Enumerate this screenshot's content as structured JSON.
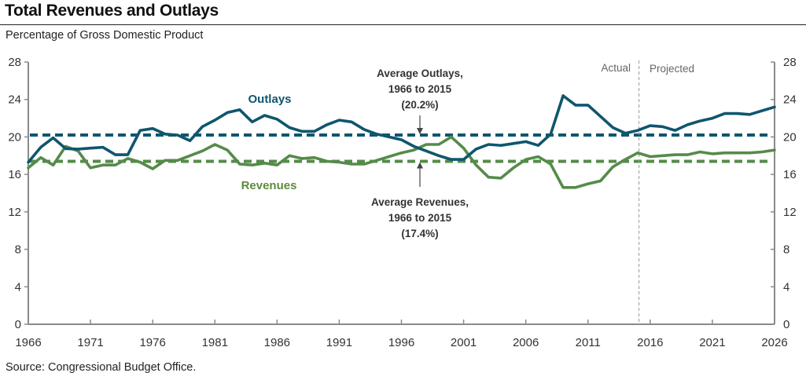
{
  "header": {
    "title": "Total Revenues and Outlays",
    "subtitle": "Percentage of Gross Domestic Product"
  },
  "footer": {
    "source": "Source: Congressional Budget Office."
  },
  "colors": {
    "outlays": "#0f566e",
    "revenues": "#558b4a",
    "revenues_label": "#5e8c3c",
    "axis": "#8a8a8a",
    "text": "#333333"
  },
  "chart_data": {
    "type": "line",
    "title": "Total Revenues and Outlays",
    "subtitle": "Percentage of Gross Domestic Product",
    "xlabel": "",
    "ylabel": "Percentage of Gross Domestic Product",
    "xlim": [
      1966,
      2026
    ],
    "ylim": [
      0,
      28
    ],
    "x_ticks": [
      "1966",
      "1971",
      "1976",
      "1981",
      "1986",
      "1991",
      "1996",
      "2001",
      "2006",
      "2011",
      "2016",
      "2021",
      "2026"
    ],
    "y_ticks": [
      "0",
      "4",
      "8",
      "12",
      "16",
      "20",
      "24",
      "28"
    ],
    "grid": false,
    "legend": "inline labels",
    "x": [
      1966,
      1967,
      1968,
      1969,
      1970,
      1971,
      1972,
      1973,
      1974,
      1975,
      1976,
      1977,
      1978,
      1979,
      1980,
      1981,
      1982,
      1983,
      1984,
      1985,
      1986,
      1987,
      1988,
      1989,
      1990,
      1991,
      1992,
      1993,
      1994,
      1995,
      1996,
      1997,
      1998,
      1999,
      2000,
      2001,
      2002,
      2003,
      2004,
      2005,
      2006,
      2007,
      2008,
      2009,
      2010,
      2011,
      2012,
      2013,
      2014,
      2015,
      2016,
      2017,
      2018,
      2019,
      2020,
      2021,
      2022,
      2023,
      2024,
      2025,
      2026
    ],
    "series": [
      {
        "name": "Outlays",
        "label": "Outlays",
        "values": [
          17.3,
          18.9,
          19.9,
          18.75,
          18.7,
          18.8,
          18.9,
          18.1,
          18.1,
          20.7,
          20.9,
          20.3,
          20.2,
          19.6,
          21.1,
          21.8,
          22.6,
          22.9,
          21.6,
          22.3,
          21.9,
          21.0,
          20.6,
          20.6,
          21.3,
          21.8,
          21.6,
          20.8,
          20.3,
          20.0,
          19.7,
          19.0,
          18.5,
          18.0,
          17.6,
          17.6,
          18.7,
          19.2,
          19.1,
          19.3,
          19.5,
          19.1,
          20.3,
          24.4,
          23.4,
          23.4,
          22.2,
          21.0,
          20.4,
          20.7,
          21.2,
          21.1,
          20.7,
          21.3,
          21.7,
          22.0,
          22.5,
          22.5,
          22.4,
          22.8,
          23.2
        ]
      },
      {
        "name": "Revenues",
        "label": "Revenues",
        "values": [
          16.7,
          17.8,
          17.0,
          19.0,
          18.5,
          16.7,
          17.0,
          17.0,
          17.7,
          17.3,
          16.6,
          17.5,
          17.5,
          18.0,
          18.5,
          19.2,
          18.6,
          17.1,
          17.0,
          17.2,
          17.0,
          18.0,
          17.7,
          17.8,
          17.4,
          17.3,
          17.1,
          17.1,
          17.5,
          17.9,
          18.3,
          18.6,
          19.2,
          19.2,
          20.0,
          18.8,
          17.0,
          15.7,
          15.6,
          16.7,
          17.6,
          17.9,
          17.1,
          14.6,
          14.6,
          15.0,
          15.3,
          16.8,
          17.6,
          18.3,
          17.9,
          18.0,
          18.1,
          18.1,
          18.4,
          18.2,
          18.3,
          18.3,
          18.3,
          18.4,
          18.6
        ]
      }
    ],
    "reference_lines": [
      {
        "name": "Average Outlays",
        "value": 20.2,
        "label_lines": [
          "Average Outlays,",
          "1966 to 2015",
          "(20.2%)"
        ]
      },
      {
        "name": "Average Revenues",
        "value": 17.4,
        "label_lines": [
          "Average Revenues,",
          "1966 to 2015",
          "(17.4%)"
        ]
      }
    ],
    "divider": {
      "x": 2015.1,
      "left_label": "Actual",
      "right_label": "Projected"
    }
  }
}
